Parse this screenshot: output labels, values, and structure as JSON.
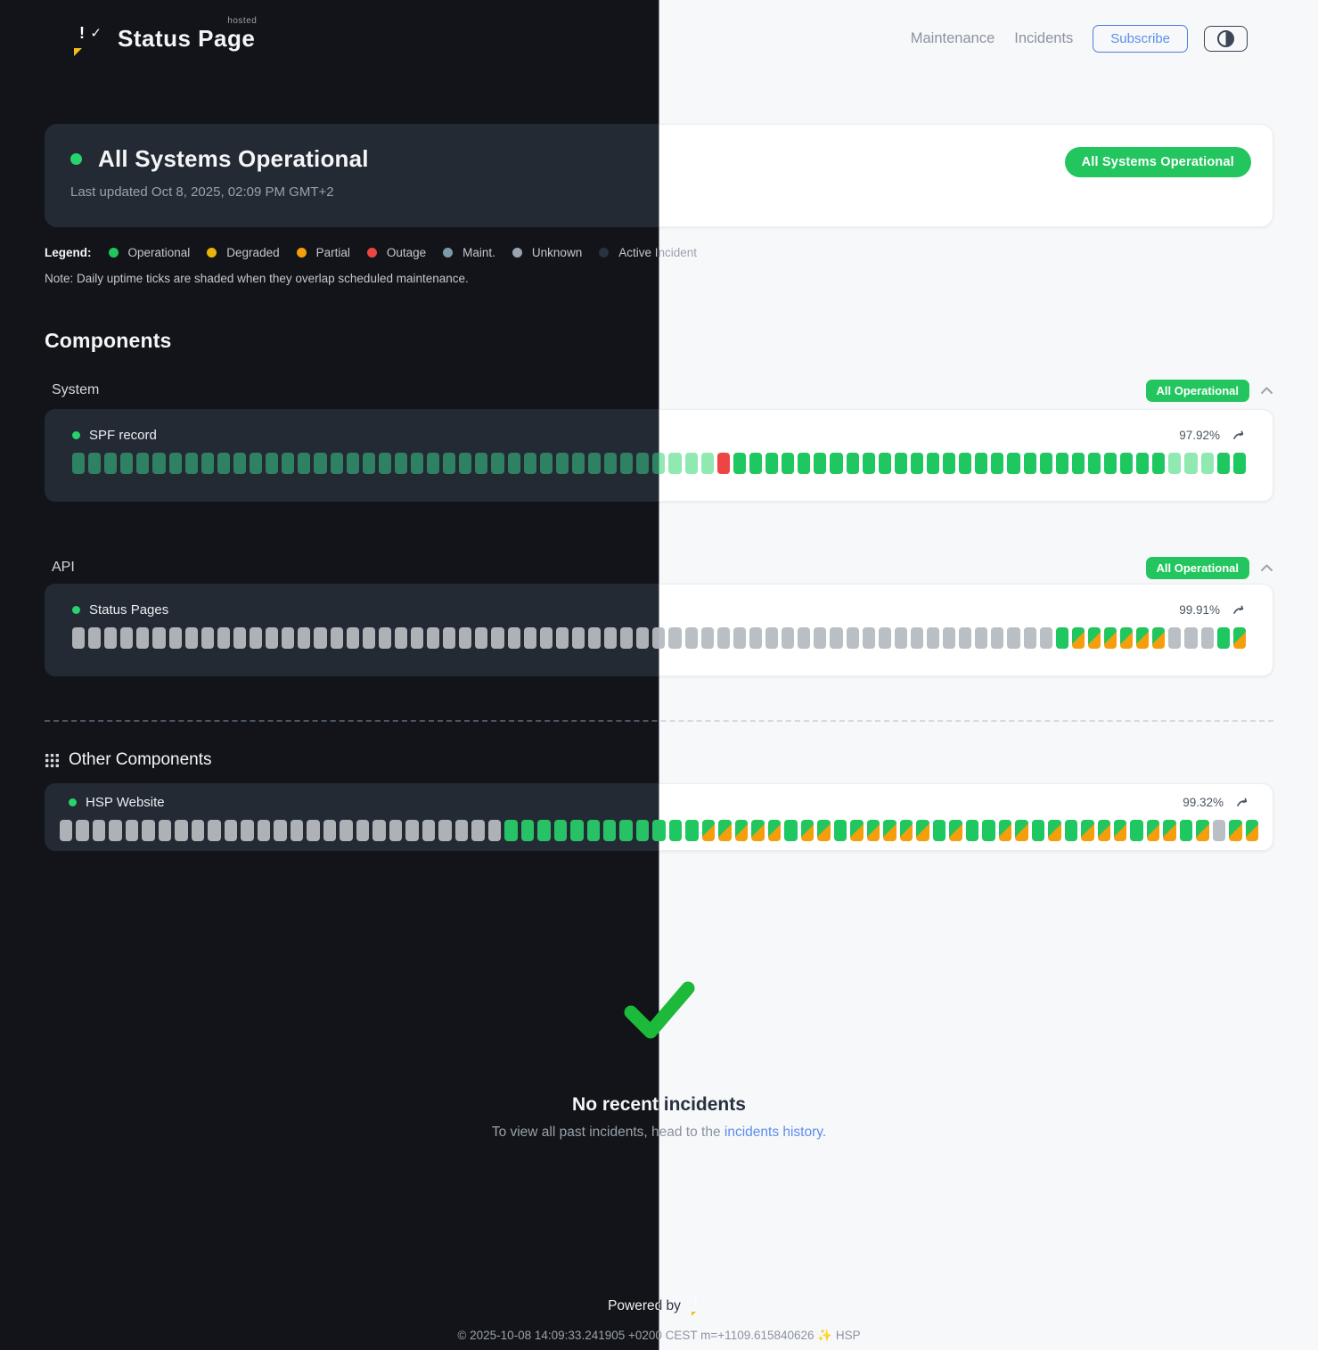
{
  "brand": {
    "name": "Status Page",
    "hosted": "hosted",
    "logo_exclaim": "!",
    "logo_check": "✓"
  },
  "nav": {
    "maintenance": "Maintenance",
    "incidents": "Incidents",
    "subscribe": "Subscribe"
  },
  "banner": {
    "title": "All Systems Operational",
    "last_updated": "Last updated Oct 8, 2025, 02:09 PM GMT+2",
    "badge": "All Systems Operational"
  },
  "legend": {
    "label": "Legend:",
    "items": [
      {
        "label": "Operational",
        "color": "#22c55e"
      },
      {
        "label": "Degraded",
        "color": "#eab308"
      },
      {
        "label": "Partial",
        "color": "#f59e0b"
      },
      {
        "label": "Outage",
        "color": "#ef4444"
      },
      {
        "label": "Maint.",
        "color": "#7e99a8"
      },
      {
        "label": "Unknown",
        "color": "#9ca3af"
      },
      {
        "label": "Active Incident",
        "color": "#1f2937"
      }
    ],
    "note": "Note: Daily uptime ticks are shaded when they overlap scheduled maintenance."
  },
  "components": {
    "heading": "Components",
    "groups": [
      {
        "label": "System",
        "badge": "All Operational",
        "items": [
          {
            "name": "SPF record",
            "uptime": "97.92%",
            "ticks": "ffffffffffffffffffffffffffffffffffffffffrooooooooooooooooooooooooooofffoo"
          }
        ]
      },
      {
        "label": "API",
        "badge": "All Operational",
        "items": [
          {
            "name": "Status Pages",
            "uptime": "99.91%",
            "ticks": "uuuuuuuuuuuuuuuuuuuuuuuuuuuuuuuuuuuuuuuuuuuuuuuuuuuuuuuuuuuuuommmmmmuuuom"
          }
        ]
      }
    ],
    "other": {
      "label": "Other Components",
      "items": [
        {
          "name": "HSP Website",
          "uptime": "99.32%",
          "ticks": "uuuuuuuuuuuuuuuuuuuuuuuuuuuoooooooooooommmmmommommmmmomoommomommmommomumm"
        }
      ]
    }
  },
  "tick_legend": {
    "o": "operational",
    "f": "operational-faded",
    "r": "outage",
    "u": "unknown",
    "m": "maintenance-overlap"
  },
  "empty_state": {
    "title": "No recent incidents",
    "text_prefix": "To view all past incidents, head to the ",
    "link_label": "incidents history."
  },
  "footer": {
    "powered_by": "Powered by",
    "copyright": "© 2025-10-08 14:09:33.241905 +0200 CEST m=+1109.615840626 ✨ HSP"
  },
  "colors": {
    "operational_green": "#22c55e",
    "faded_green_light": "#8fe9b1",
    "faded_green_dark": "#2e8162",
    "outage_red": "#ef4444",
    "maintenance_orange": "#f59e0b",
    "unknown_gray": "#b9bdc4",
    "badge_green": "#22c55e",
    "link_blue": "#5b8def",
    "subscribe_blue": "#4d7fdd",
    "check_green": "#1db93a",
    "logo_yellow": "#f4be18",
    "logo_green": "#43b14c",
    "dark_bg": "#121419",
    "dark_card": "#232a34",
    "light_bg": "#f7f8fa",
    "light_card": "#ffffff"
  }
}
